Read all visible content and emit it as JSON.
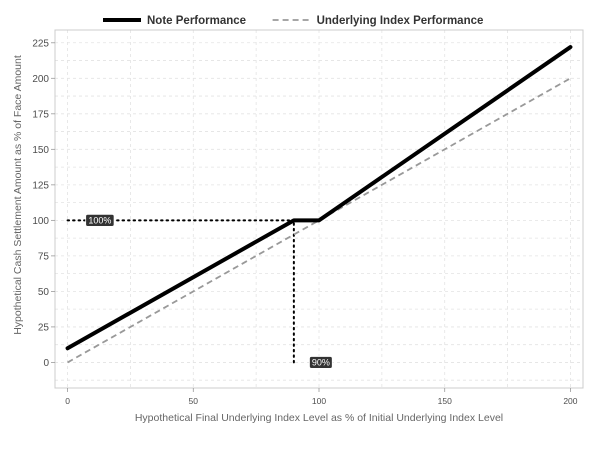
{
  "chart_data": {
    "type": "line",
    "title": "",
    "xlabel": "Hypothetical Final Underlying Index Level as % of Initial Underlying Index Level",
    "ylabel": "Hypothetical Cash Settlement Amount as % of Face Amount",
    "xlim": [
      -5,
      205
    ],
    "ylim": [
      -18,
      234
    ],
    "x_ticks": [
      0,
      50,
      100,
      150,
      200
    ],
    "y_ticks": [
      0,
      25,
      50,
      75,
      100,
      125,
      150,
      175,
      200,
      225
    ],
    "grid": true,
    "legend_position": "top",
    "series": [
      {
        "name": "Note Performance",
        "style": "solid",
        "color": "#000000",
        "x": [
          0,
          90,
          100,
          200
        ],
        "y": [
          10,
          100,
          100,
          222
        ]
      },
      {
        "name": "Underlying Index Performance",
        "style": "dashed",
        "color": "#999999",
        "x": [
          0,
          200
        ],
        "y": [
          0,
          200
        ]
      }
    ],
    "reference_lines": [
      {
        "x": [
          0,
          90
        ],
        "y": [
          100,
          100
        ],
        "style": "dotted"
      },
      {
        "x": [
          90,
          90
        ],
        "y": [
          0,
          100
        ],
        "style": "dotted"
      }
    ],
    "annotations": [
      {
        "label": "100%",
        "x": 8,
        "y": 100
      },
      {
        "label": "90%",
        "x": 97,
        "y": 0
      }
    ]
  }
}
